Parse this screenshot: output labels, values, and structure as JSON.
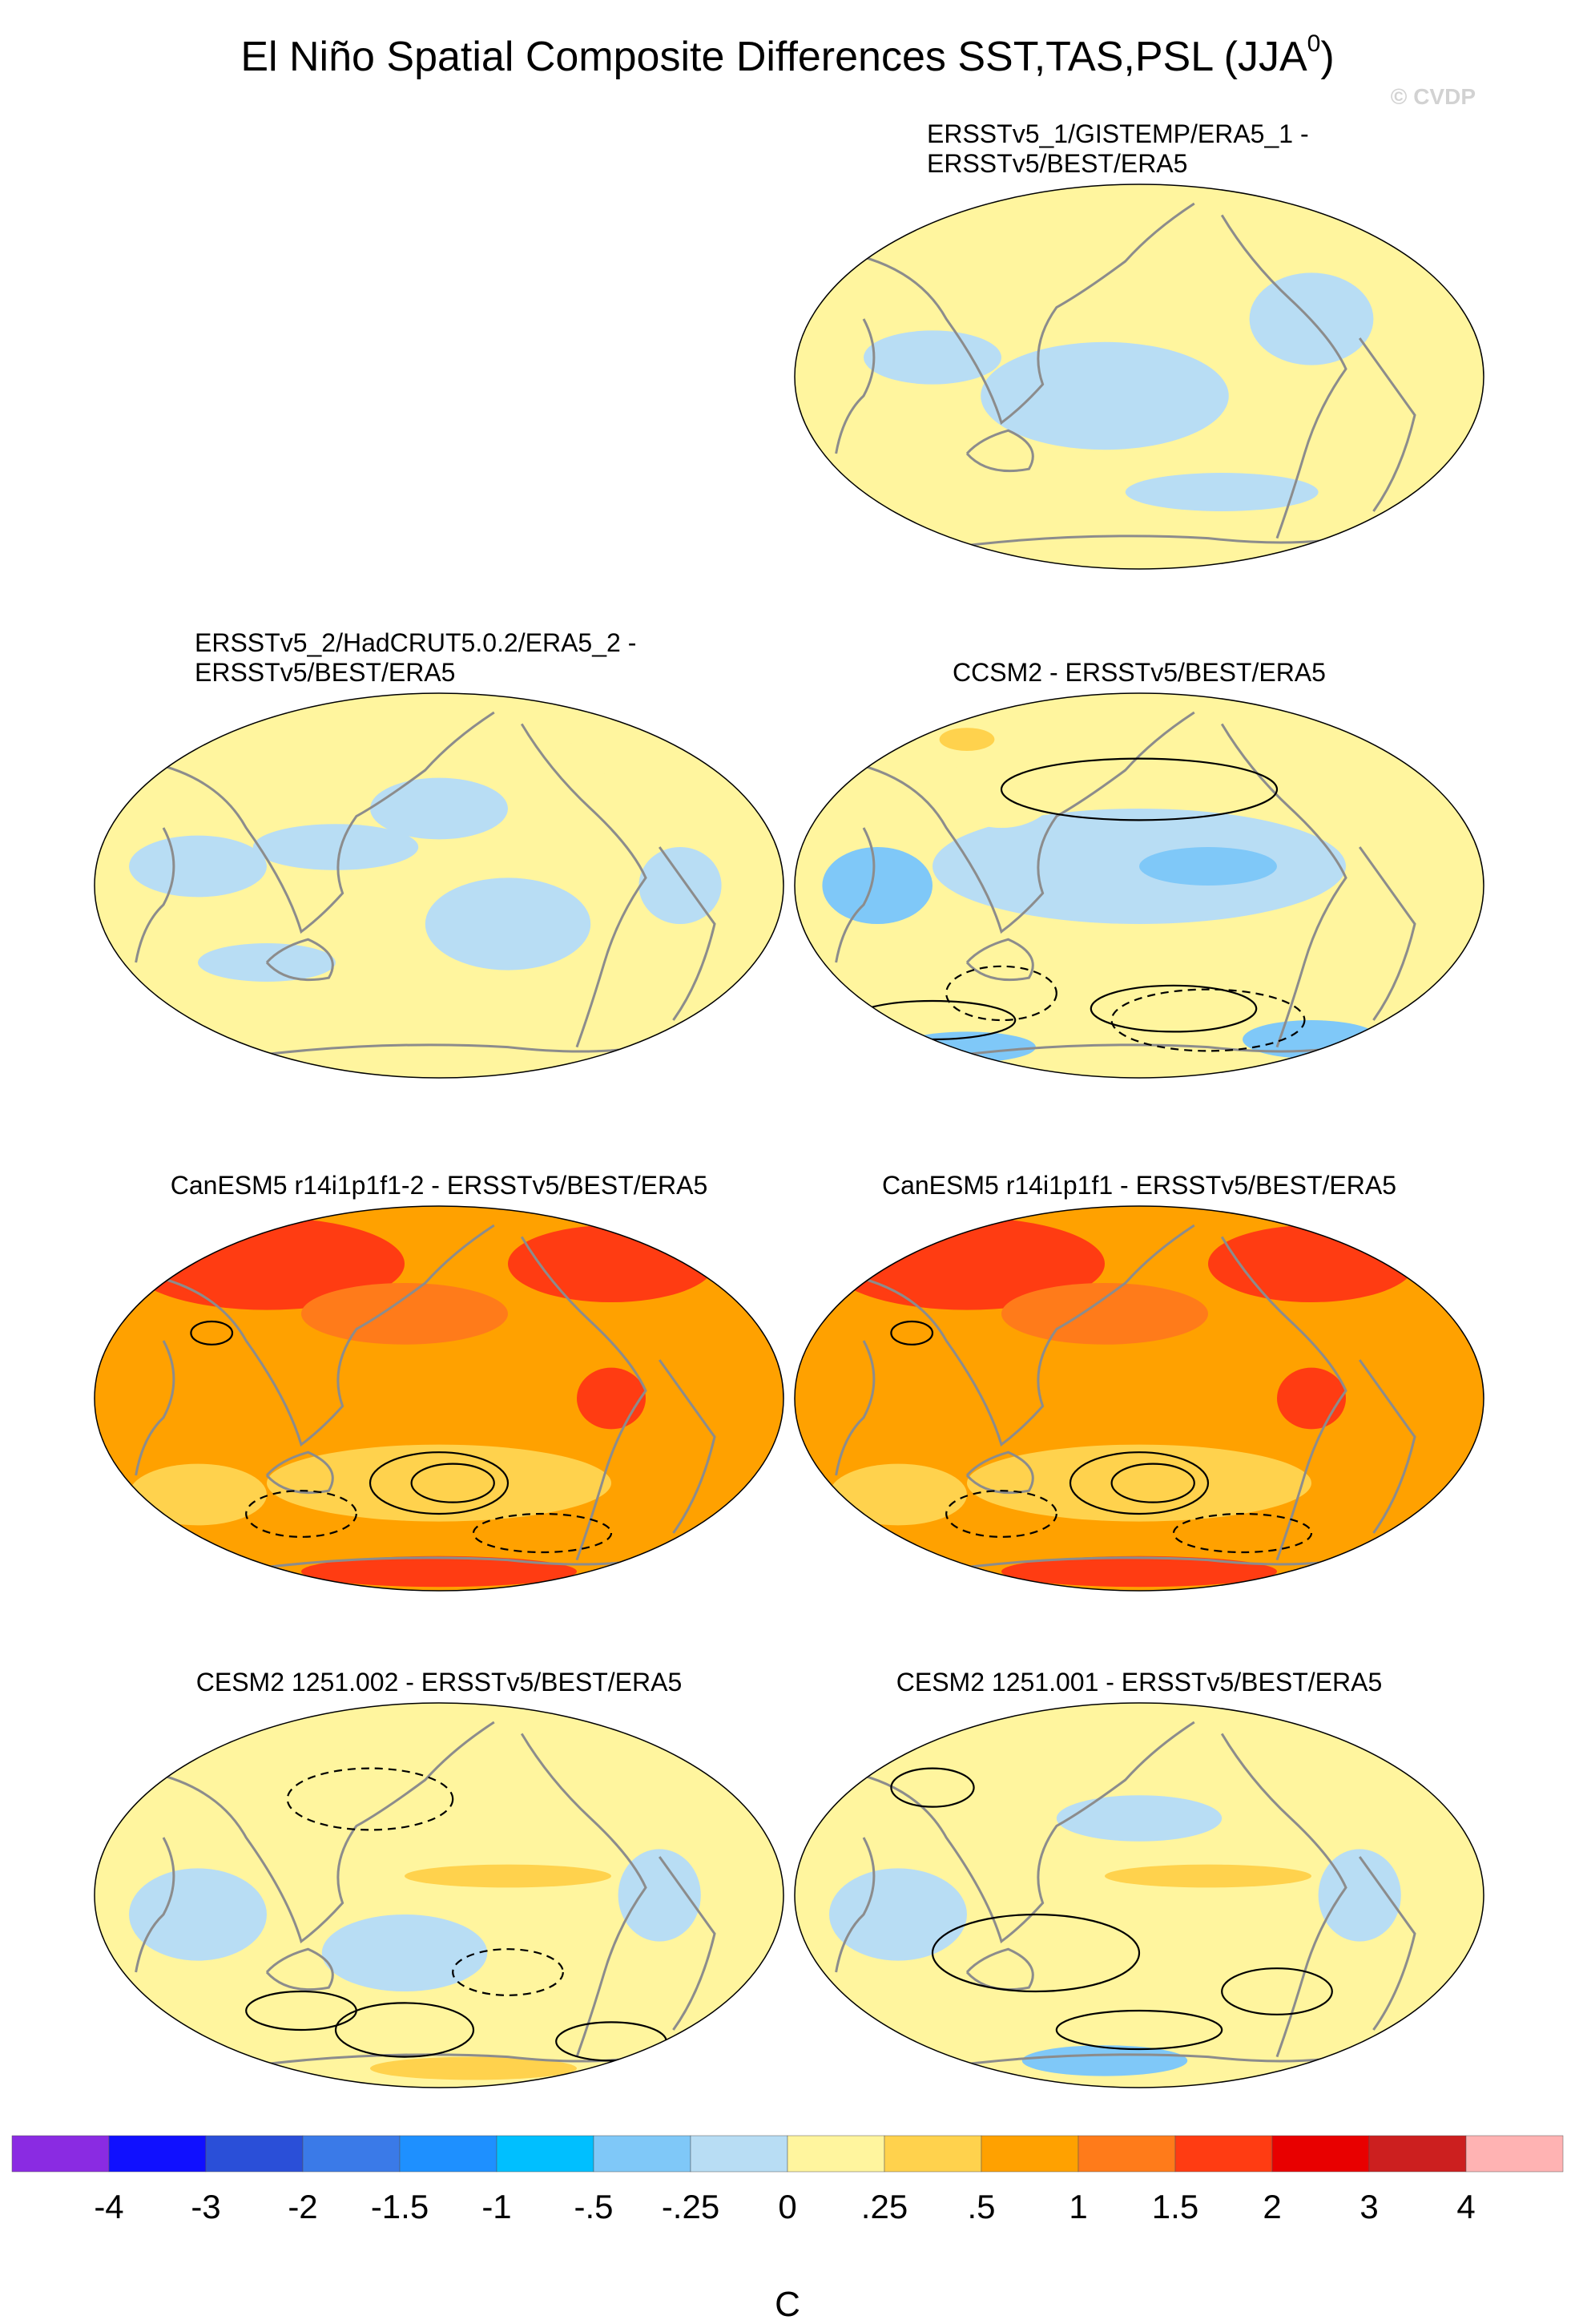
{
  "title_main": "El Niño Spatial Composite Differences SST,TAS,PSL (JJA",
  "title_sup": "0",
  "title_close": ")",
  "watermark": "© CVDP",
  "colors": {
    "land_outline": "#8c8c8c",
    "contour": "#000000",
    "map_border": "#000000"
  },
  "chart_data": {
    "type": "heatmap",
    "projection": "Robinson (Pacific-centered)",
    "panels": [
      {
        "id": "ersst1",
        "title_lines": [
          "ERSSTv5_1/GISTEMP/ERA5_1 -",
          "ERSSTv5/BEST/ERA5"
        ],
        "base": "#fff59e",
        "patches": [
          {
            "level": "-.25",
            "cx": 0.45,
            "cy": 0.55,
            "rx": 0.18,
            "ry": 0.14
          },
          {
            "level": "-.25",
            "cx": 0.2,
            "cy": 0.45,
            "rx": 0.1,
            "ry": 0.07
          },
          {
            "level": "-.25",
            "cx": 0.75,
            "cy": 0.35,
            "rx": 0.09,
            "ry": 0.12
          },
          {
            "level": "-.25",
            "cx": 0.62,
            "cy": 0.8,
            "rx": 0.14,
            "ry": 0.05
          },
          {
            "level": ".25",
            "cx": 0.22,
            "cy": 0.12,
            "rx": 0.06,
            "ry": 0.05
          },
          {
            "level": ".25",
            "cx": 0.72,
            "cy": 0.92,
            "rx": 0.05,
            "ry": 0.03
          }
        ],
        "contours": []
      },
      {
        "id": "ersst2",
        "title_lines": [
          "ERSSTv5_2/HadCRUT5.0.2/ERA5_2 -",
          "ERSSTv5/BEST/ERA5"
        ],
        "base": "#fff59e",
        "patches": [
          {
            "level": "-.25",
            "cx": 0.15,
            "cy": 0.45,
            "rx": 0.1,
            "ry": 0.08
          },
          {
            "level": "-.25",
            "cx": 0.35,
            "cy": 0.4,
            "rx": 0.12,
            "ry": 0.06
          },
          {
            "level": "-.25",
            "cx": 0.5,
            "cy": 0.3,
            "rx": 0.1,
            "ry": 0.08
          },
          {
            "level": "-.25",
            "cx": 0.6,
            "cy": 0.6,
            "rx": 0.12,
            "ry": 0.12
          },
          {
            "level": "-.25",
            "cx": 0.25,
            "cy": 0.7,
            "rx": 0.1,
            "ry": 0.05
          },
          {
            "level": "-.25",
            "cx": 0.85,
            "cy": 0.5,
            "rx": 0.06,
            "ry": 0.1
          },
          {
            "level": ".25",
            "cx": 0.2,
            "cy": 0.12,
            "rx": 0.06,
            "ry": 0.05
          },
          {
            "level": ".25",
            "cx": 0.7,
            "cy": 0.18,
            "rx": 0.05,
            "ry": 0.05
          }
        ],
        "contours": []
      },
      {
        "id": "ccsm2",
        "title_lines": [
          "CCSM2 - ERSSTv5/BEST/ERA5"
        ],
        "base": "#fff59e",
        "patches": [
          {
            "level": "-.25",
            "cx": 0.5,
            "cy": 0.45,
            "rx": 0.3,
            "ry": 0.15
          },
          {
            "level": "-.5",
            "cx": 0.6,
            "cy": 0.45,
            "rx": 0.1,
            "ry": 0.05
          },
          {
            "level": "-.5",
            "cx": 0.12,
            "cy": 0.5,
            "rx": 0.08,
            "ry": 0.1
          },
          {
            "level": "-.5",
            "cx": 0.75,
            "cy": 0.9,
            "rx": 0.1,
            "ry": 0.05
          },
          {
            "level": "-.5",
            "cx": 0.25,
            "cy": 0.92,
            "rx": 0.1,
            "ry": 0.04
          },
          {
            "level": ".25",
            "cx": 0.3,
            "cy": 0.25,
            "rx": 0.08,
            "ry": 0.1
          },
          {
            "level": ".5",
            "cx": 0.25,
            "cy": 0.12,
            "rx": 0.04,
            "ry": 0.03
          },
          {
            "level": ".25",
            "cx": 0.82,
            "cy": 0.3,
            "rx": 0.05,
            "ry": 0.08
          }
        ],
        "contours": [
          {
            "cx": 0.55,
            "cy": 0.82,
            "rx": 0.12,
            "ry": 0.06,
            "dashed": false
          },
          {
            "cx": 0.6,
            "cy": 0.85,
            "rx": 0.14,
            "ry": 0.08,
            "dashed": true
          },
          {
            "cx": 0.3,
            "cy": 0.78,
            "rx": 0.08,
            "ry": 0.07,
            "dashed": true
          },
          {
            "cx": 0.2,
            "cy": 0.85,
            "rx": 0.12,
            "ry": 0.05,
            "dashed": false
          },
          {
            "cx": 0.5,
            "cy": 0.25,
            "rx": 0.2,
            "ry": 0.08,
            "dashed": false
          }
        ]
      },
      {
        "id": "canesm_2",
        "title_lines": [
          "CanESM5 r14i1p1f1-2 - ERSSTv5/BEST/ERA5"
        ],
        "base": "#ffa100",
        "patches": [
          {
            "level": "2",
            "cx": 0.25,
            "cy": 0.15,
            "rx": 0.2,
            "ry": 0.12
          },
          {
            "level": "2",
            "cx": 0.75,
            "cy": 0.15,
            "rx": 0.15,
            "ry": 0.1
          },
          {
            "level": "1.5",
            "cx": 0.45,
            "cy": 0.28,
            "rx": 0.15,
            "ry": 0.08
          },
          {
            "level": "2",
            "cx": 0.75,
            "cy": 0.5,
            "rx": 0.05,
            "ry": 0.08
          },
          {
            "level": "2",
            "cx": 0.5,
            "cy": 0.95,
            "rx": 0.2,
            "ry": 0.04
          },
          {
            "level": ".5",
            "cx": 0.5,
            "cy": 0.72,
            "rx": 0.25,
            "ry": 0.1
          },
          {
            "level": ".5",
            "cx": 0.15,
            "cy": 0.75,
            "rx": 0.1,
            "ry": 0.08
          }
        ],
        "contours": [
          {
            "cx": 0.5,
            "cy": 0.72,
            "rx": 0.1,
            "ry": 0.08,
            "dashed": false
          },
          {
            "cx": 0.52,
            "cy": 0.72,
            "rx": 0.06,
            "ry": 0.05,
            "dashed": false
          },
          {
            "cx": 0.3,
            "cy": 0.8,
            "rx": 0.08,
            "ry": 0.06,
            "dashed": true
          },
          {
            "cx": 0.65,
            "cy": 0.85,
            "rx": 0.1,
            "ry": 0.05,
            "dashed": true
          },
          {
            "cx": 0.17,
            "cy": 0.33,
            "rx": 0.03,
            "ry": 0.03,
            "dashed": false
          }
        ]
      },
      {
        "id": "canesm_1",
        "title_lines": [
          "CanESM5 r14i1p1f1 - ERSSTv5/BEST/ERA5"
        ],
        "base": "#ffa100",
        "patches": [
          {
            "level": "2",
            "cx": 0.25,
            "cy": 0.15,
            "rx": 0.2,
            "ry": 0.12
          },
          {
            "level": "2",
            "cx": 0.75,
            "cy": 0.15,
            "rx": 0.15,
            "ry": 0.1
          },
          {
            "level": "1.5",
            "cx": 0.45,
            "cy": 0.28,
            "rx": 0.15,
            "ry": 0.08
          },
          {
            "level": "2",
            "cx": 0.75,
            "cy": 0.5,
            "rx": 0.05,
            "ry": 0.08
          },
          {
            "level": "2",
            "cx": 0.5,
            "cy": 0.95,
            "rx": 0.2,
            "ry": 0.04
          },
          {
            "level": ".5",
            "cx": 0.5,
            "cy": 0.72,
            "rx": 0.25,
            "ry": 0.1
          },
          {
            "level": ".5",
            "cx": 0.15,
            "cy": 0.75,
            "rx": 0.1,
            "ry": 0.08
          }
        ],
        "contours": [
          {
            "cx": 0.5,
            "cy": 0.72,
            "rx": 0.1,
            "ry": 0.08,
            "dashed": false
          },
          {
            "cx": 0.52,
            "cy": 0.72,
            "rx": 0.06,
            "ry": 0.05,
            "dashed": false
          },
          {
            "cx": 0.3,
            "cy": 0.8,
            "rx": 0.08,
            "ry": 0.06,
            "dashed": true
          },
          {
            "cx": 0.65,
            "cy": 0.85,
            "rx": 0.1,
            "ry": 0.05,
            "dashed": true
          },
          {
            "cx": 0.17,
            "cy": 0.33,
            "rx": 0.03,
            "ry": 0.03,
            "dashed": false
          }
        ]
      },
      {
        "id": "cesm_002",
        "title_lines": [
          "CESM2 1251.002 - ERSSTv5/BEST/ERA5"
        ],
        "base": "#fff59e",
        "patches": [
          {
            "level": "-.25",
            "cx": 0.15,
            "cy": 0.55,
            "rx": 0.1,
            "ry": 0.12
          },
          {
            "level": "-.25",
            "cx": 0.45,
            "cy": 0.65,
            "rx": 0.12,
            "ry": 0.1
          },
          {
            "level": "-.25",
            "cx": 0.82,
            "cy": 0.5,
            "rx": 0.06,
            "ry": 0.12
          },
          {
            "level": ".5",
            "cx": 0.6,
            "cy": 0.45,
            "rx": 0.15,
            "ry": 0.03
          },
          {
            "level": ".25",
            "cx": 0.25,
            "cy": 0.15,
            "rx": 0.12,
            "ry": 0.08
          },
          {
            "level": ".5",
            "cx": 0.55,
            "cy": 0.95,
            "rx": 0.15,
            "ry": 0.03
          }
        ],
        "contours": [
          {
            "cx": 0.45,
            "cy": 0.85,
            "rx": 0.1,
            "ry": 0.07,
            "dashed": false
          },
          {
            "cx": 0.3,
            "cy": 0.8,
            "rx": 0.08,
            "ry": 0.05,
            "dashed": false
          },
          {
            "cx": 0.6,
            "cy": 0.7,
            "rx": 0.08,
            "ry": 0.06,
            "dashed": true
          },
          {
            "cx": 0.75,
            "cy": 0.88,
            "rx": 0.08,
            "ry": 0.05,
            "dashed": false
          },
          {
            "cx": 0.4,
            "cy": 0.25,
            "rx": 0.12,
            "ry": 0.08,
            "dashed": true
          }
        ]
      },
      {
        "id": "cesm_001",
        "title_lines": [
          "CESM2 1251.001 - ERSSTv5/BEST/ERA5"
        ],
        "base": "#fff59e",
        "patches": [
          {
            "level": "-.25",
            "cx": 0.15,
            "cy": 0.55,
            "rx": 0.1,
            "ry": 0.12
          },
          {
            "level": "-.25",
            "cx": 0.5,
            "cy": 0.3,
            "rx": 0.12,
            "ry": 0.06
          },
          {
            "level": "-.25",
            "cx": 0.82,
            "cy": 0.5,
            "rx": 0.06,
            "ry": 0.12
          },
          {
            "level": "-.5",
            "cx": 0.45,
            "cy": 0.93,
            "rx": 0.12,
            "ry": 0.04
          },
          {
            "level": ".5",
            "cx": 0.6,
            "cy": 0.45,
            "rx": 0.15,
            "ry": 0.03
          },
          {
            "level": ".25",
            "cx": 0.55,
            "cy": 0.65,
            "rx": 0.12,
            "ry": 0.08
          },
          {
            "level": ".25",
            "cx": 0.25,
            "cy": 0.15,
            "rx": 0.12,
            "ry": 0.08
          }
        ],
        "contours": [
          {
            "cx": 0.35,
            "cy": 0.65,
            "rx": 0.15,
            "ry": 0.1,
            "dashed": false
          },
          {
            "cx": 0.7,
            "cy": 0.75,
            "rx": 0.08,
            "ry": 0.06,
            "dashed": false
          },
          {
            "cx": 0.5,
            "cy": 0.85,
            "rx": 0.12,
            "ry": 0.05,
            "dashed": false
          },
          {
            "cx": 0.2,
            "cy": 0.22,
            "rx": 0.06,
            "ry": 0.05,
            "dashed": false
          }
        ]
      }
    ],
    "legend": {
      "unit": "C",
      "colors": [
        "#8a2be2",
        "#1010ff",
        "#2a4fd8",
        "#3a7ae8",
        "#1e90ff",
        "#00bfff",
        "#7fc8f8",
        "#b8ddf4",
        "#fff59e",
        "#ffd24d",
        "#ffa100",
        "#ff7b1a",
        "#ff3c12",
        "#e80000",
        "#cc1f1f",
        "#ffb3b3"
      ],
      "labels": [
        "-4",
        "-3",
        "-2",
        "-1.5",
        "-1",
        "-.5",
        "-.25",
        "0",
        ".25",
        ".5",
        "1",
        "1.5",
        "2",
        "3",
        "4"
      ]
    }
  }
}
